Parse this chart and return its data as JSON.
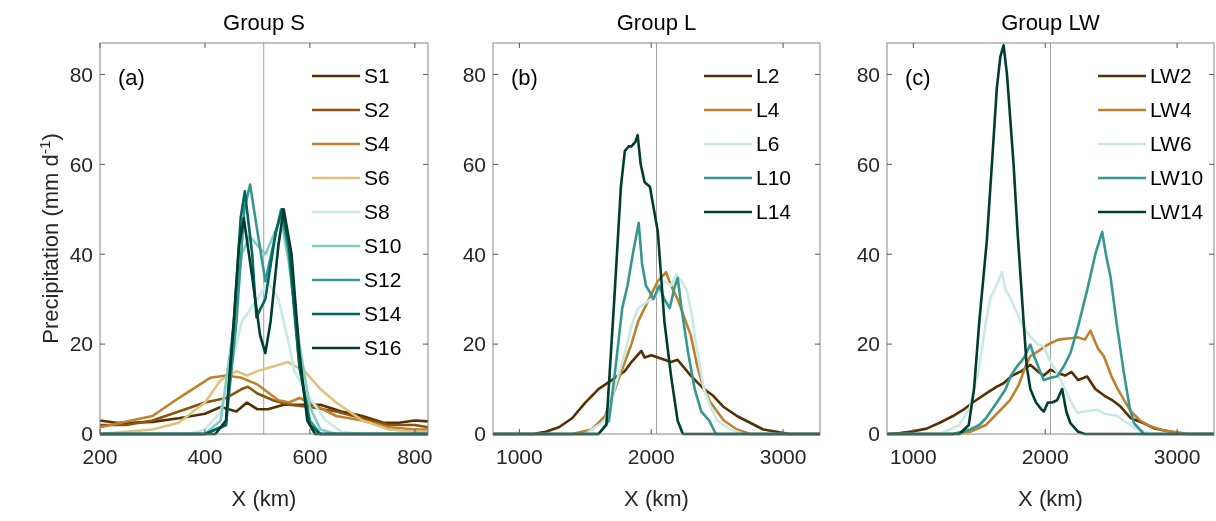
{
  "chart_data": [
    {
      "type": "line",
      "title": "Group S",
      "xlabel": "X (km)",
      "ylabel": "Precipitation (mm d$^{-1}$)",
      "annotations": [
        "(a)"
      ],
      "xlim": [
        200,
        825
      ],
      "xticks": [
        200,
        400,
        600,
        800
      ],
      "ylim": [
        0,
        87
      ],
      "yticks": [
        0,
        20,
        40,
        60,
        80
      ],
      "legend": "top right",
      "ref_lines": [
        {
          "axis": "x",
          "value": 512,
          "color": "#a0a0a0"
        }
      ],
      "series": [
        {
          "name": "S1",
          "color": "#543005",
          "x": [
            200,
            230,
            260,
            300,
            350,
            400,
            430,
            460,
            480,
            500,
            520,
            550,
            580,
            620,
            660,
            700,
            740,
            770,
            800,
            825
          ],
          "values": [
            3,
            2.5,
            2.5,
            2.7,
            3.5,
            4.5,
            6,
            5,
            7,
            5.5,
            5.5,
            6.5,
            6.5,
            6.5,
            5,
            4,
            2.5,
            2.5,
            3,
            2.8
          ]
        },
        {
          "name": "S2",
          "color": "#8c510a",
          "x": [
            200,
            250,
            300,
            350,
            400,
            440,
            470,
            482,
            500,
            530,
            560,
            600,
            650,
            700,
            750,
            800,
            825
          ],
          "values": [
            2,
            2,
            3,
            5,
            7,
            8,
            10,
            10.5,
            9,
            7.5,
            6.5,
            6,
            5,
            3.5,
            2,
            2,
            1.5
          ]
        },
        {
          "name": "S4",
          "color": "#bf812d",
          "x": [
            200,
            300,
            350,
            390,
            410,
            440,
            470,
            500,
            540,
            560,
            580,
            600,
            650,
            700,
            750,
            800,
            825
          ],
          "values": [
            1.5,
            4,
            8,
            11,
            12.5,
            13,
            12.5,
            11,
            7.5,
            7,
            8,
            7,
            4,
            3,
            1.5,
            1,
            1
          ]
        },
        {
          "name": "S6",
          "color": "#dfc27d",
          "x": [
            200,
            300,
            350,
            400,
            430,
            460,
            480,
            500,
            530,
            558,
            590,
            620,
            650,
            700,
            750,
            800,
            825
          ],
          "values": [
            0,
            1,
            2.5,
            7,
            12,
            14,
            13,
            14,
            15,
            16,
            14,
            10,
            7,
            3,
            1,
            0.5,
            0.5
          ]
        },
        {
          "name": "S8",
          "color": "#c7eae5",
          "x": [
            200,
            370,
            400,
            430,
            450,
            470,
            500,
            520,
            540,
            560,
            570,
            600,
            630,
            660,
            700,
            825
          ],
          "values": [
            0,
            0,
            1,
            5,
            15,
            25,
            30,
            34,
            30,
            20,
            14,
            8,
            3,
            0.5,
            0,
            0
          ]
        },
        {
          "name": "S10",
          "color": "#80cdc1",
          "x": [
            200,
            400,
            430,
            450,
            470,
            485,
            500,
            515,
            530,
            545,
            560,
            580,
            600,
            620,
            650,
            825
          ],
          "values": [
            0,
            0,
            3,
            20,
            40,
            44,
            42,
            40,
            44,
            48,
            38,
            20,
            6,
            1,
            0,
            0
          ]
        },
        {
          "name": "S12",
          "color": "#35978f",
          "x": [
            200,
            400,
            440,
            460,
            475,
            486,
            500,
            515,
            530,
            545,
            560,
            580,
            600,
            620,
            825
          ],
          "values": [
            0,
            0,
            2,
            25,
            50,
            55.5,
            45,
            34,
            42,
            50,
            40,
            15,
            3,
            0,
            0
          ]
        },
        {
          "name": "S14",
          "color": "#01665e",
          "x": [
            200,
            400,
            440,
            455,
            468,
            476,
            490,
            498,
            515,
            535,
            547,
            560,
            580,
            600,
            620,
            825
          ],
          "values": [
            0,
            0,
            2,
            25,
            48,
            54,
            40,
            26,
            30,
            45,
            50,
            42,
            15,
            2,
            0,
            0
          ]
        },
        {
          "name": "S16",
          "color": "#003c30",
          "x": [
            200,
            420,
            440,
            455,
            465,
            474,
            490,
            505,
            515,
            525,
            540,
            550,
            565,
            580,
            595,
            610,
            825
          ],
          "values": [
            0,
            0,
            3,
            25,
            42,
            48,
            35,
            22,
            18,
            25,
            42,
            50,
            40,
            18,
            3,
            0,
            0
          ]
        }
      ]
    },
    {
      "type": "line",
      "title": "Group L",
      "xlabel": "X (km)",
      "annotations": [
        "(b)"
      ],
      "xlim": [
        800,
        3280
      ],
      "xticks": [
        1000,
        2000,
        3000
      ],
      "ylim": [
        0,
        87
      ],
      "yticks": [
        0,
        20,
        40,
        60,
        80
      ],
      "legend": "top right",
      "ref_lines": [
        {
          "axis": "x",
          "value": 2040,
          "color": "#a0a0a0"
        }
      ],
      "series": [
        {
          "name": "L2",
          "color": "#543005",
          "x": [
            800,
            1100,
            1200,
            1300,
            1400,
            1500,
            1600,
            1700,
            1800,
            1850,
            1925,
            1950,
            2000,
            2050,
            2100,
            2150,
            2200,
            2300,
            2400,
            2470,
            2550,
            2650,
            2750,
            2850,
            2950,
            3050,
            3280
          ],
          "values": [
            0,
            0,
            0.5,
            1.5,
            3.5,
            7,
            10,
            12,
            14,
            16,
            18.5,
            17,
            17.5,
            17,
            16.5,
            16,
            16.5,
            13,
            10,
            8.5,
            6,
            4,
            2.5,
            1,
            0.5,
            0,
            0
          ]
        },
        {
          "name": "L4",
          "color": "#bf812d",
          "x": [
            800,
            1400,
            1550,
            1650,
            1700,
            1750,
            1800,
            1850,
            1900,
            1950,
            2000,
            2050,
            2113,
            2150,
            2200,
            2250,
            2300,
            2350,
            2400,
            2450,
            2500,
            2550,
            2650,
            2750,
            3280
          ],
          "values": [
            0,
            0,
            1,
            4,
            8,
            12,
            16,
            20,
            25,
            28,
            31,
            34,
            36,
            33,
            30,
            26,
            22,
            15,
            10,
            7,
            5,
            3,
            1,
            0,
            0
          ]
        },
        {
          "name": "L6",
          "color": "#c7eae5",
          "x": [
            800,
            1500,
            1650,
            1700,
            1750,
            1800,
            1850,
            1900,
            1950,
            2000,
            2050,
            2100,
            2150,
            2190,
            2230,
            2270,
            2310,
            2350,
            2400,
            2450,
            2500,
            2600,
            2700,
            3280
          ],
          "values": [
            0,
            0,
            3,
            8,
            13,
            18,
            24,
            28,
            29,
            30,
            31,
            34,
            33,
            35.5,
            34,
            32,
            26,
            18,
            10,
            6,
            3,
            1,
            0,
            0
          ]
        },
        {
          "name": "L10",
          "color": "#35978f",
          "x": [
            800,
            1600,
            1680,
            1730,
            1780,
            1820,
            1860,
            1905,
            1930,
            1960,
            2000,
            2016,
            2060,
            2100,
            2140,
            2180,
            2201,
            2230,
            2280,
            2330,
            2380,
            2440,
            2490,
            3280
          ],
          "values": [
            0,
            0,
            3,
            15,
            28,
            33,
            40,
            47,
            38,
            33,
            31,
            30,
            33,
            30,
            28,
            33,
            34.7,
            28,
            18,
            10,
            5,
            3,
            0,
            0
          ]
        },
        {
          "name": "L14",
          "color": "#003c30",
          "x": [
            800,
            1600,
            1660,
            1720,
            1770,
            1800,
            1830,
            1850,
            1880,
            1897,
            1920,
            1950,
            1990,
            2020,
            2050,
            2100,
            2150,
            2200,
            2240,
            3280
          ],
          "values": [
            0,
            0,
            2,
            30,
            55,
            63,
            64,
            64,
            65,
            66.5,
            60,
            56,
            55,
            50,
            45,
            25,
            13,
            3,
            0,
            0
          ]
        }
      ]
    },
    {
      "type": "line",
      "title": "Group LW",
      "xlabel": "X (km)",
      "annotations": [
        "(c)"
      ],
      "xlim": [
        800,
        3280
      ],
      "xticks": [
        1000,
        2000,
        3000
      ],
      "ylim": [
        0,
        87
      ],
      "yticks": [
        0,
        20,
        40,
        60,
        80
      ],
      "legend": "top right",
      "ref_lines": [
        {
          "axis": "x",
          "value": 2040,
          "color": "#a0a0a0"
        }
      ],
      "series": [
        {
          "name": "LW2",
          "color": "#543005",
          "x": [
            800,
            900,
            1000,
            1100,
            1200,
            1300,
            1380,
            1450,
            1550,
            1630,
            1684,
            1750,
            1820,
            1887,
            1940,
            1990,
            2039,
            2100,
            2150,
            2200,
            2250,
            2318,
            2380,
            2450,
            2510,
            2571,
            2650,
            2740,
            2824,
            2950,
            3079,
            3280
          ],
          "values": [
            0,
            0.2,
            0.6,
            1.2,
            2.5,
            4,
            5.4,
            7,
            9,
            10.5,
            11.3,
            13,
            14,
            15.4,
            14,
            13,
            14.3,
            13.5,
            13,
            13.8,
            12,
            12.8,
            10,
            8.5,
            7.5,
            6.1,
            3.5,
            2.5,
            1.3,
            0.5,
            0,
            0
          ]
        },
        {
          "name": "LW4",
          "color": "#bf812d",
          "x": [
            800,
            1300,
            1430,
            1550,
            1650,
            1734,
            1800,
            1850,
            1887,
            1950,
            2000,
            2039,
            2100,
            2191,
            2250,
            2300,
            2343,
            2400,
            2445,
            2500,
            2550,
            2597,
            2650,
            2720,
            2800,
            2900,
            3079,
            3280
          ],
          "values": [
            0,
            0,
            0.5,
            2,
            5,
            7.6,
            11,
            15,
            17.3,
            18.5,
            19.5,
            20.2,
            21,
            21.3,
            21.5,
            21,
            23,
            19,
            17.3,
            13,
            10,
            7.6,
            5,
            3,
            1.7,
            0.8,
            0,
            0
          ]
        },
        {
          "name": "LW6",
          "color": "#c7eae5",
          "x": [
            800,
            1200,
            1350,
            1430,
            1500,
            1550,
            1582,
            1630,
            1671,
            1700,
            1740,
            1785,
            1830,
            1887,
            1940,
            1988,
            2040,
            2090,
            2150,
            2200,
            2242,
            2300,
            2394,
            2450,
            2546,
            2620,
            2698,
            2800,
            3280
          ],
          "values": [
            0,
            0,
            2,
            6,
            15,
            25,
            30,
            33,
            36,
            32,
            30,
            27,
            24,
            21.7,
            20,
            19.5,
            16,
            13.6,
            10,
            7,
            4.7,
            5,
            5.4,
            4.5,
            4,
            2.5,
            1,
            0,
            0
          ]
        },
        {
          "name": "LW10",
          "color": "#35978f",
          "x": [
            800,
            1300,
            1430,
            1500,
            1550,
            1633,
            1700,
            1740,
            1785,
            1840,
            1887,
            1920,
            1960,
            1988,
            2040,
            2090,
            2140,
            2191,
            2250,
            2318,
            2380,
            2432,
            2460,
            2495,
            2540,
            2597,
            2640,
            2673,
            2749,
            3280
          ],
          "values": [
            0,
            0,
            1,
            2,
            3.5,
            7,
            10,
            13,
            15,
            17,
            19.9,
            17,
            14,
            12,
            12.5,
            12.8,
            15,
            18,
            24,
            32,
            40,
            45,
            40,
            35,
            25,
            13.5,
            6,
            2.4,
            0,
            0
          ]
        },
        {
          "name": "LW14",
          "color": "#003c30",
          "x": [
            800,
            1350,
            1420,
            1460,
            1500,
            1557,
            1600,
            1633,
            1660,
            1684,
            1710,
            1740,
            1760,
            1790,
            1836,
            1860,
            1887,
            1930,
            1970,
            1990,
            2020,
            2052,
            2090,
            2128,
            2160,
            2191,
            2250,
            2300,
            3280
          ],
          "values": [
            0,
            0,
            2,
            10,
            25,
            43,
            62,
            77,
            84,
            86.5,
            80,
            68,
            60,
            45,
            25,
            15,
            10,
            7,
            5.5,
            5,
            7,
            7,
            7.5,
            10,
            5,
            2.4,
            0.5,
            0,
            0
          ]
        }
      ]
    }
  ]
}
